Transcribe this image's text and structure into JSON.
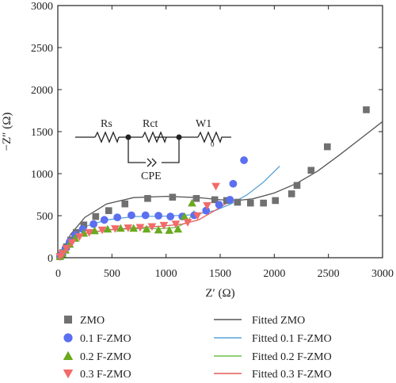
{
  "chart_data": {
    "type": "scatter",
    "xlabel": "Z′ (Ω)",
    "ylabel": "−Z″ (Ω)",
    "xlim": [
      0,
      3000
    ],
    "ylim": [
      0,
      3000
    ],
    "x_ticks": [
      0,
      500,
      1000,
      1500,
      2000,
      2500,
      3000
    ],
    "y_ticks": [
      0,
      500,
      1000,
      1500,
      2000,
      2500,
      3000
    ],
    "grid": false,
    "legend_position": "below plot, two columns",
    "series": [
      {
        "name": "ZMO",
        "marker": "square",
        "color": "#707070",
        "points": [
          [
            20,
            15
          ],
          [
            45,
            60
          ],
          [
            80,
            130
          ],
          [
            120,
            210
          ],
          [
            170,
            300
          ],
          [
            240,
            390
          ],
          [
            350,
            490
          ],
          [
            470,
            560
          ],
          [
            620,
            640
          ],
          [
            830,
            705
          ],
          [
            1060,
            720
          ],
          [
            1280,
            705
          ],
          [
            1450,
            690
          ],
          [
            1560,
            680
          ],
          [
            1660,
            660
          ],
          [
            1780,
            650
          ],
          [
            1900,
            650
          ],
          [
            2010,
            680
          ],
          [
            2160,
            760
          ],
          [
            2210,
            860
          ],
          [
            2340,
            1040
          ],
          [
            2490,
            1320
          ],
          [
            2850,
            1760
          ]
        ]
      },
      {
        "name": "0.1 F-ZMO",
        "marker": "circle",
        "color": "#5b6ff0",
        "points": [
          [
            20,
            15
          ],
          [
            40,
            50
          ],
          [
            70,
            110
          ],
          [
            110,
            190
          ],
          [
            160,
            270
          ],
          [
            230,
            340
          ],
          [
            330,
            400
          ],
          [
            430,
            450
          ],
          [
            550,
            480
          ],
          [
            680,
            505
          ],
          [
            810,
            505
          ],
          [
            930,
            500
          ],
          [
            1040,
            490
          ],
          [
            1150,
            490
          ],
          [
            1260,
            505
          ],
          [
            1370,
            560
          ],
          [
            1490,
            630
          ],
          [
            1590,
            690
          ],
          [
            1620,
            880
          ],
          [
            1720,
            1160
          ]
        ]
      },
      {
        "name": "0.2 F-ZMO",
        "marker": "triangle-up",
        "color": "#6aaa1e",
        "points": [
          [
            20,
            15
          ],
          [
            40,
            45
          ],
          [
            70,
            90
          ],
          [
            110,
            160
          ],
          [
            160,
            230
          ],
          [
            240,
            290
          ],
          [
            340,
            320
          ],
          [
            460,
            340
          ],
          [
            580,
            350
          ],
          [
            700,
            350
          ],
          [
            820,
            340
          ],
          [
            930,
            330
          ],
          [
            1030,
            325
          ],
          [
            1110,
            340
          ],
          [
            1170,
            490
          ],
          [
            1240,
            650
          ]
        ]
      },
      {
        "name": "0.3 F-ZMO",
        "marker": "triangle-down",
        "color": "#f26a6a",
        "points": [
          [
            20,
            15
          ],
          [
            45,
            50
          ],
          [
            80,
            110
          ],
          [
            130,
            180
          ],
          [
            200,
            250
          ],
          [
            290,
            300
          ],
          [
            410,
            330
          ],
          [
            530,
            345
          ],
          [
            650,
            355
          ],
          [
            760,
            360
          ],
          [
            870,
            370
          ],
          [
            980,
            385
          ],
          [
            1090,
            400
          ],
          [
            1200,
            420
          ],
          [
            1290,
            500
          ],
          [
            1380,
            620
          ],
          [
            1460,
            850
          ]
        ]
      }
    ],
    "fits": [
      {
        "name": "Fitted ZMO",
        "color": "#555555",
        "points": [
          [
            0,
            0
          ],
          [
            50,
            110
          ],
          [
            120,
            280
          ],
          [
            250,
            480
          ],
          [
            450,
            640
          ],
          [
            700,
            715
          ],
          [
            1000,
            730
          ],
          [
            1300,
            715
          ],
          [
            1500,
            690
          ],
          [
            1650,
            680
          ],
          [
            1800,
            700
          ],
          [
            2000,
            770
          ],
          [
            2200,
            880
          ],
          [
            2400,
            1030
          ],
          [
            2600,
            1220
          ],
          [
            2800,
            1420
          ],
          [
            3000,
            1620
          ]
        ]
      },
      {
        "name": "Fitted 0.1 F-ZMO",
        "color": "#5aa3d8",
        "points": [
          [
            0,
            0
          ],
          [
            50,
            95
          ],
          [
            120,
            230
          ],
          [
            250,
            370
          ],
          [
            450,
            450
          ],
          [
            700,
            490
          ],
          [
            1000,
            495
          ],
          [
            1250,
            510
          ],
          [
            1450,
            560
          ],
          [
            1600,
            640
          ],
          [
            1750,
            750
          ],
          [
            1900,
            900
          ],
          [
            2050,
            1090
          ]
        ]
      },
      {
        "name": "Fitted 0.2 F-ZMO",
        "color": "#6dbf4c",
        "points": [
          [
            0,
            0
          ],
          [
            50,
            85
          ],
          [
            120,
            200
          ],
          [
            250,
            290
          ],
          [
            450,
            330
          ],
          [
            700,
            345
          ],
          [
            950,
            345
          ],
          [
            1100,
            360
          ],
          [
            1200,
            430
          ],
          [
            1260,
            560
          ]
        ]
      },
      {
        "name": "Fitted 0.3 F-ZMO",
        "color": "#e35a5a",
        "points": [
          [
            0,
            0
          ],
          [
            50,
            85
          ],
          [
            120,
            200
          ],
          [
            250,
            290
          ],
          [
            450,
            330
          ],
          [
            700,
            355
          ],
          [
            950,
            375
          ],
          [
            1150,
            400
          ],
          [
            1300,
            450
          ],
          [
            1450,
            560
          ],
          [
            1600,
            680
          ]
        ]
      }
    ]
  },
  "circuit": {
    "labels": [
      "Rs",
      "Rct",
      "W1",
      "CPE"
    ],
    "w1_subscript": "0"
  }
}
